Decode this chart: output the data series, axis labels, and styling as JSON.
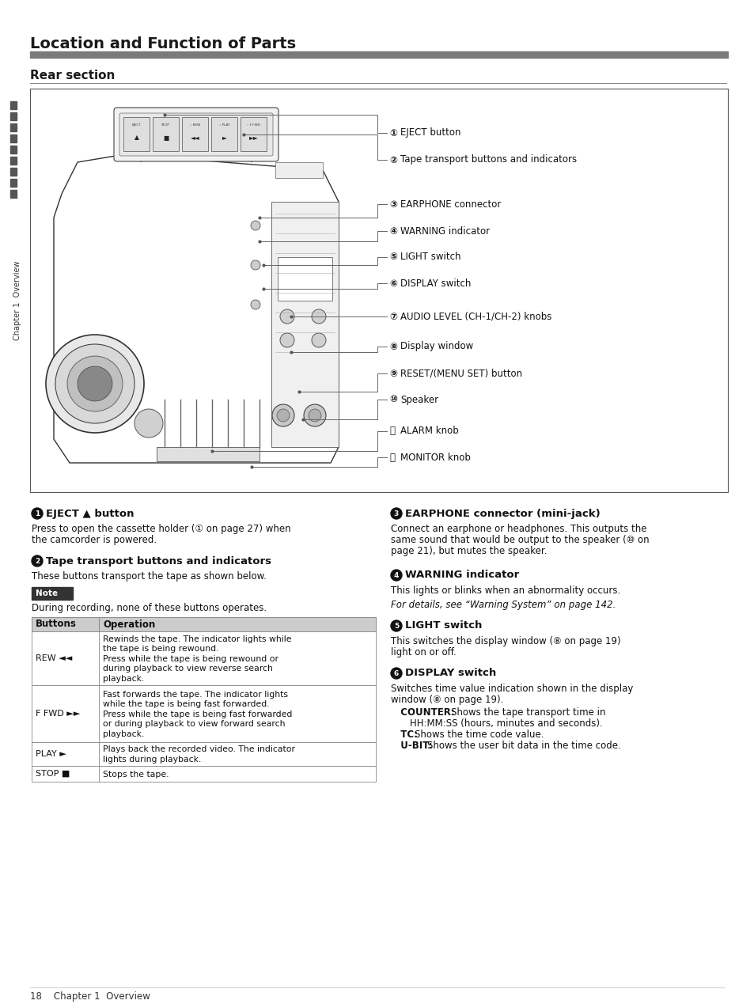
{
  "title": "Location and Function of Parts",
  "section": "Rear section",
  "bg_color": "#ffffff",
  "title_color": "#1a1a1a",
  "gray_bar_color": "#7a7a7a",
  "diagram_labels": [
    "① EJECT button",
    "② Tape transport buttons and indicators",
    "③ EARPHONE connector",
    "④ WARNING indicator",
    "⑤ LIGHT switch",
    "⑥ DISPLAY switch",
    "⑦ AUDIO LEVEL (CH-1/CH-2) knobs",
    "⑧ Display window",
    "⑨ RESET/(MENU SET) button",
    "⑩ Speaker",
    "⑪ ALARM knob",
    "⑫ MONITOR knob"
  ],
  "table_rows": [
    [
      "REW ◄◄",
      "Rewinds the tape. The indicator lights while\nthe tape is being rewound.\nPress while the tape is being rewound or\nduring playback to view reverse search\nplayback."
    ],
    [
      "F FWD ►►",
      "Fast forwards the tape. The indicator lights\nwhile the tape is being fast forwarded.\nPress while the tape is being fast forwarded\nor during playback to view forward search\nplayback."
    ],
    [
      "PLAY ►",
      "Plays back the recorded video. The indicator\nlights during playback."
    ],
    [
      "STOP ■",
      "Stops the tape."
    ]
  ],
  "footer": "18    Chapter 1  Overview"
}
